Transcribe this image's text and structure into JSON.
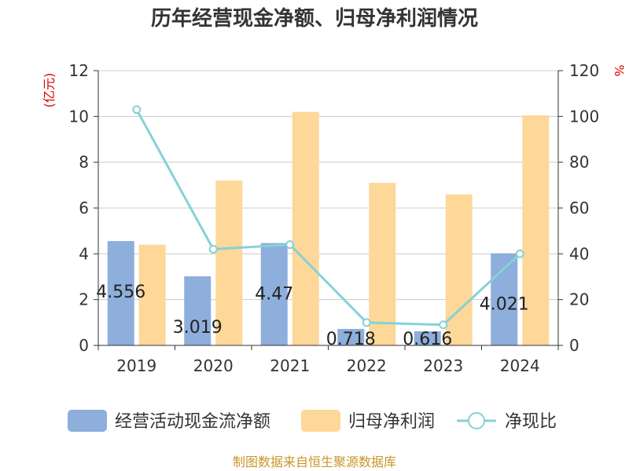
{
  "chart_data": {
    "type": "bar",
    "title": "历年经营现金净额、归母净利润情况",
    "categories": [
      "2019",
      "2020",
      "2021",
      "2022",
      "2023",
      "2024"
    ],
    "series": [
      {
        "name": "经营活动现金流净额",
        "type": "bar",
        "axis": "left",
        "color": "#8eaedb",
        "values": [
          4.556,
          3.019,
          4.47,
          0.718,
          0.616,
          4.021
        ],
        "labels": [
          "4.556",
          "3.019",
          "4.47",
          "0.718",
          "0.616",
          "4.021"
        ]
      },
      {
        "name": "归母净利润",
        "type": "bar",
        "axis": "left",
        "color": "#fdd899",
        "values": [
          4.4,
          7.2,
          10.2,
          7.1,
          6.6,
          10.05
        ]
      },
      {
        "name": "净现比",
        "type": "line",
        "axis": "right",
        "color": "#86d1d6",
        "values": [
          103,
          42,
          44,
          10,
          9,
          40
        ]
      }
    ],
    "ylabel": "(亿元)",
    "y2label": "%",
    "ylim": [
      0,
      12
    ],
    "y2lim": [
      0,
      120
    ],
    "yticks": [
      "0",
      "2",
      "4",
      "6",
      "8",
      "10",
      "12"
    ],
    "y2ticks": [
      "0",
      "20",
      "40",
      "60",
      "80",
      "100",
      "120"
    ],
    "grid": true,
    "legend": "bottom"
  },
  "source": "制图数据来自恒生聚源数据库"
}
